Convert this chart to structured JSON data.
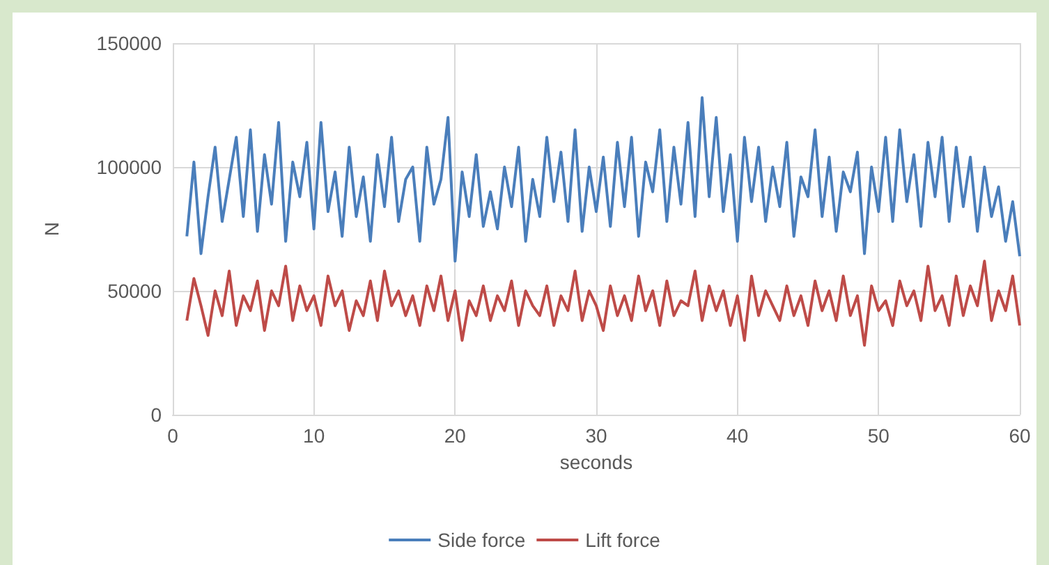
{
  "chart_data": {
    "type": "line",
    "xlabel": "seconds",
    "ylabel": "N",
    "x": [
      1,
      1.5,
      2,
      2.5,
      3,
      3.5,
      4,
      4.5,
      5,
      5.5,
      6,
      6.5,
      7,
      7.5,
      8,
      8.5,
      9,
      9.5,
      10,
      10.5,
      11,
      11.5,
      12,
      12.5,
      13,
      13.5,
      14,
      14.5,
      15,
      15.5,
      16,
      16.5,
      17,
      17.5,
      18,
      18.5,
      19,
      19.5,
      20,
      20.5,
      21,
      21.5,
      22,
      22.5,
      23,
      23.5,
      24,
      24.5,
      25,
      25.5,
      26,
      26.5,
      27,
      27.5,
      28,
      28.5,
      29,
      29.5,
      30,
      30.5,
      31,
      31.5,
      32,
      32.5,
      33,
      33.5,
      34,
      34.5,
      35,
      35.5,
      36,
      36.5,
      37,
      37.5,
      38,
      38.5,
      39,
      39.5,
      40,
      40.5,
      41,
      41.5,
      42,
      42.5,
      43,
      43.5,
      44,
      44.5,
      45,
      45.5,
      46,
      46.5,
      47,
      47.5,
      48,
      48.5,
      49,
      49.5,
      50,
      50.5,
      51,
      51.5,
      52,
      52.5,
      53,
      53.5,
      54,
      54.5,
      55,
      55.5,
      56,
      56.5,
      57,
      57.5,
      58,
      58.5,
      59,
      59.5,
      60
    ],
    "series": [
      {
        "name": "Side force",
        "color": "#4a7ebb",
        "values": [
          72000,
          102000,
          65000,
          88000,
          108000,
          78000,
          95000,
          112000,
          80000,
          115000,
          74000,
          105000,
          85000,
          118000,
          70000,
          102000,
          88000,
          110000,
          75000,
          118000,
          82000,
          98000,
          72000,
          108000,
          80000,
          96000,
          70000,
          105000,
          84000,
          112000,
          78000,
          95000,
          100000,
          70000,
          108000,
          85000,
          95000,
          120000,
          62000,
          98000,
          80000,
          105000,
          76000,
          90000,
          75000,
          100000,
          84000,
          108000,
          70000,
          95000,
          80000,
          112000,
          86000,
          106000,
          78000,
          115000,
          74000,
          100000,
          82000,
          104000,
          76000,
          110000,
          84000,
          112000,
          72000,
          102000,
          90000,
          115000,
          78000,
          108000,
          85000,
          118000,
          80000,
          128000,
          88000,
          120000,
          82000,
          105000,
          70000,
          112000,
          86000,
          108000,
          78000,
          100000,
          84000,
          110000,
          72000,
          96000,
          88000,
          115000,
          80000,
          104000,
          74000,
          98000,
          90000,
          106000,
          65000,
          100000,
          82000,
          112000,
          78000,
          115000,
          86000,
          105000,
          76000,
          110000,
          88000,
          112000,
          78000,
          108000,
          84000,
          104000,
          74000,
          100000,
          80000,
          92000,
          70000,
          86000,
          64000
        ]
      },
      {
        "name": "Lift force",
        "color": "#be4b48",
        "values": [
          38000,
          55000,
          44000,
          32000,
          50000,
          40000,
          58000,
          36000,
          48000,
          42000,
          54000,
          34000,
          50000,
          44000,
          60000,
          38000,
          52000,
          42000,
          48000,
          36000,
          56000,
          44000,
          50000,
          34000,
          46000,
          40000,
          54000,
          38000,
          58000,
          44000,
          50000,
          40000,
          48000,
          36000,
          52000,
          42000,
          56000,
          38000,
          50000,
          30000,
          46000,
          40000,
          52000,
          38000,
          48000,
          42000,
          54000,
          36000,
          50000,
          44000,
          40000,
          52000,
          36000,
          48000,
          42000,
          58000,
          38000,
          50000,
          44000,
          34000,
          52000,
          40000,
          48000,
          38000,
          56000,
          42000,
          50000,
          36000,
          54000,
          40000,
          46000,
          44000,
          58000,
          38000,
          52000,
          42000,
          50000,
          36000,
          48000,
          30000,
          56000,
          40000,
          50000,
          44000,
          38000,
          52000,
          40000,
          48000,
          36000,
          54000,
          42000,
          50000,
          38000,
          56000,
          40000,
          48000,
          28000,
          52000,
          42000,
          46000,
          36000,
          54000,
          44000,
          50000,
          38000,
          60000,
          42000,
          48000,
          36000,
          56000,
          40000,
          52000,
          44000,
          62000,
          38000,
          50000,
          42000,
          56000,
          36000
        ]
      }
    ],
    "xlim": [
      0,
      60
    ],
    "xticks": [
      0,
      10,
      20,
      30,
      40,
      50,
      60
    ],
    "ylim": [
      0,
      150000
    ],
    "yticks": [
      0,
      50000,
      100000,
      150000
    ],
    "grid": true,
    "legend": "bottom",
    "marker": "none",
    "line_style": "solid"
  }
}
